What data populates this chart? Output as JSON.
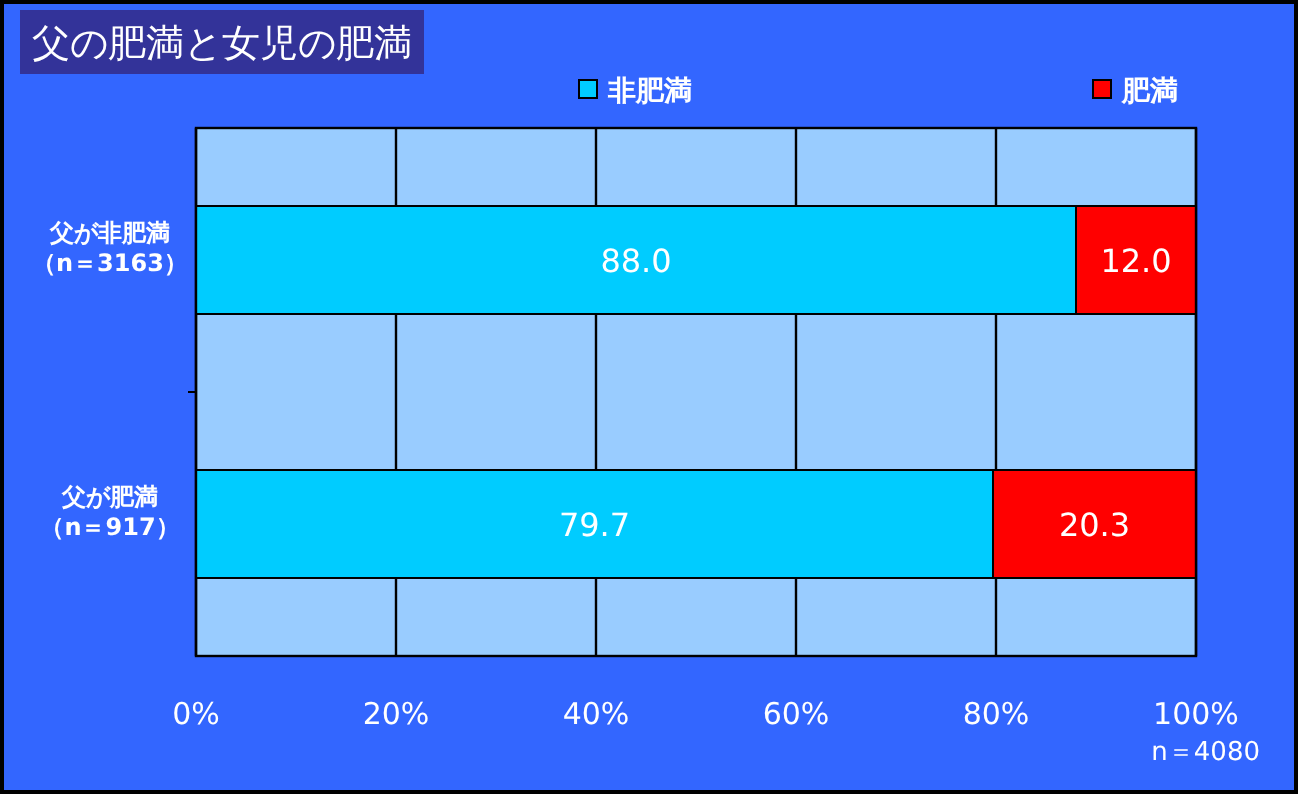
{
  "chart_data": {
    "type": "bar",
    "orientation": "horizontal",
    "stacked": true,
    "title": "父の肥満と女児の肥満",
    "categories": [
      "父が非肥満（n＝3163）",
      "父が肥満（n＝917）"
    ],
    "series": [
      {
        "name": "非肥満",
        "color": "#00ccff",
        "values": [
          88.0,
          79.7
        ],
        "value_labels": [
          "88.0",
          "79.7"
        ]
      },
      {
        "name": "肥満",
        "color": "#ff0000",
        "values": [
          12.0,
          20.3
        ],
        "value_labels": [
          "12.0",
          "20.3"
        ]
      }
    ],
    "xlim": [
      0,
      100
    ],
    "xticks": [
      {
        "value": 0,
        "label": "0%"
      },
      {
        "value": 20,
        "label": "20%"
      },
      {
        "value": 40,
        "label": "40%"
      },
      {
        "value": 60,
        "label": "60%"
      },
      {
        "value": 80,
        "label": "80%"
      },
      {
        "value": 100,
        "label": "100%"
      }
    ],
    "grid": "x",
    "legend": "top",
    "annotations": [
      "n＝4080"
    ]
  }
}
